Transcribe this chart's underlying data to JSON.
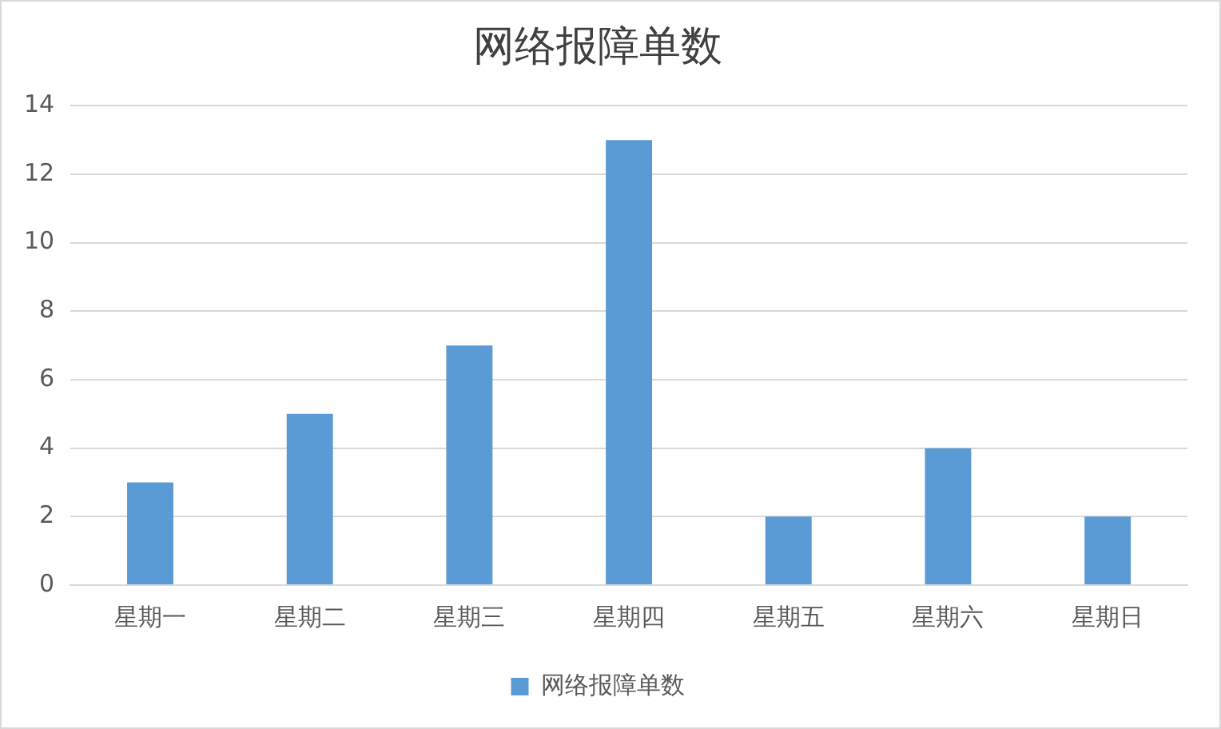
{
  "chart_data": {
    "type": "bar",
    "title": "网络报障单数",
    "categories": [
      "星期一",
      "星期二",
      "星期三",
      "星期四",
      "星期五",
      "星期六",
      "星期日"
    ],
    "series": [
      {
        "name": "网络报障单数",
        "color": "#5b9bd5",
        "values": [
          3,
          5,
          7,
          13,
          2,
          4,
          2
        ]
      }
    ],
    "ylim": [
      0,
      14
    ],
    "yticks": [
      0,
      2,
      4,
      6,
      8,
      10,
      12,
      14
    ],
    "grid": "y",
    "legend": "bottom"
  }
}
